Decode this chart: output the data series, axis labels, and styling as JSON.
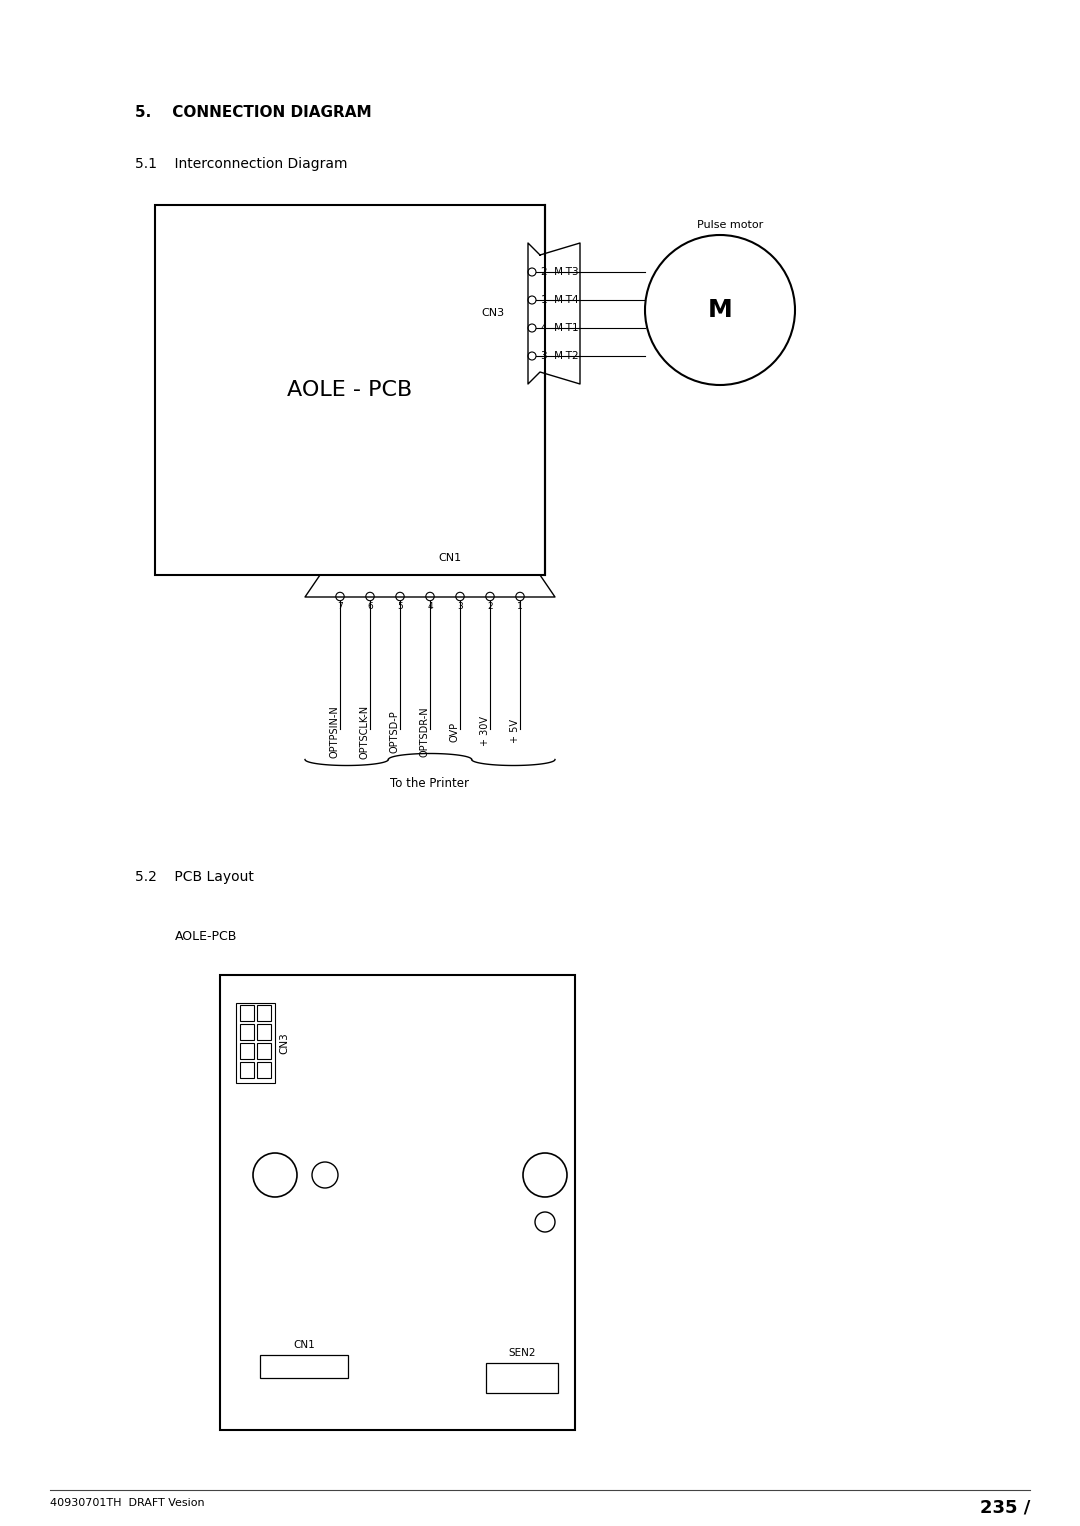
{
  "page_title": "5.    CONNECTION DIAGRAM",
  "section_51": "5.1    Interconnection Diagram",
  "section_52": "5.2    PCB Layout",
  "aole_pcb_label": "AOLE - PCB",
  "aole_pcb2_label": "AOLE-PCB",
  "pulse_motor_label": "Pulse motor",
  "motor_label": "M",
  "cn3_label": "CN3",
  "cn1_label": "CN1",
  "sen2_label": "SEN2",
  "to_printer_label": "To the Printer",
  "cn3_pins": [
    "2  M-T3",
    "1  M-T4",
    "4  M-T1",
    "3  M-T2"
  ],
  "cn1_signals": [
    "OPTPSIN-N",
    "OPTSCLK-N",
    "OPTSD-P",
    "OPTSDR-N",
    "OVP",
    "+ 30V",
    "+ 5V"
  ],
  "cn1_numbers": [
    "7",
    "6",
    "5",
    "4",
    "3",
    "2",
    "1"
  ],
  "footer_left": "40930701TH  DRAFT Vesion",
  "footer_right": "235 /",
  "bg_color": "#ffffff",
  "line_color": "#000000",
  "text_color": "#000000"
}
